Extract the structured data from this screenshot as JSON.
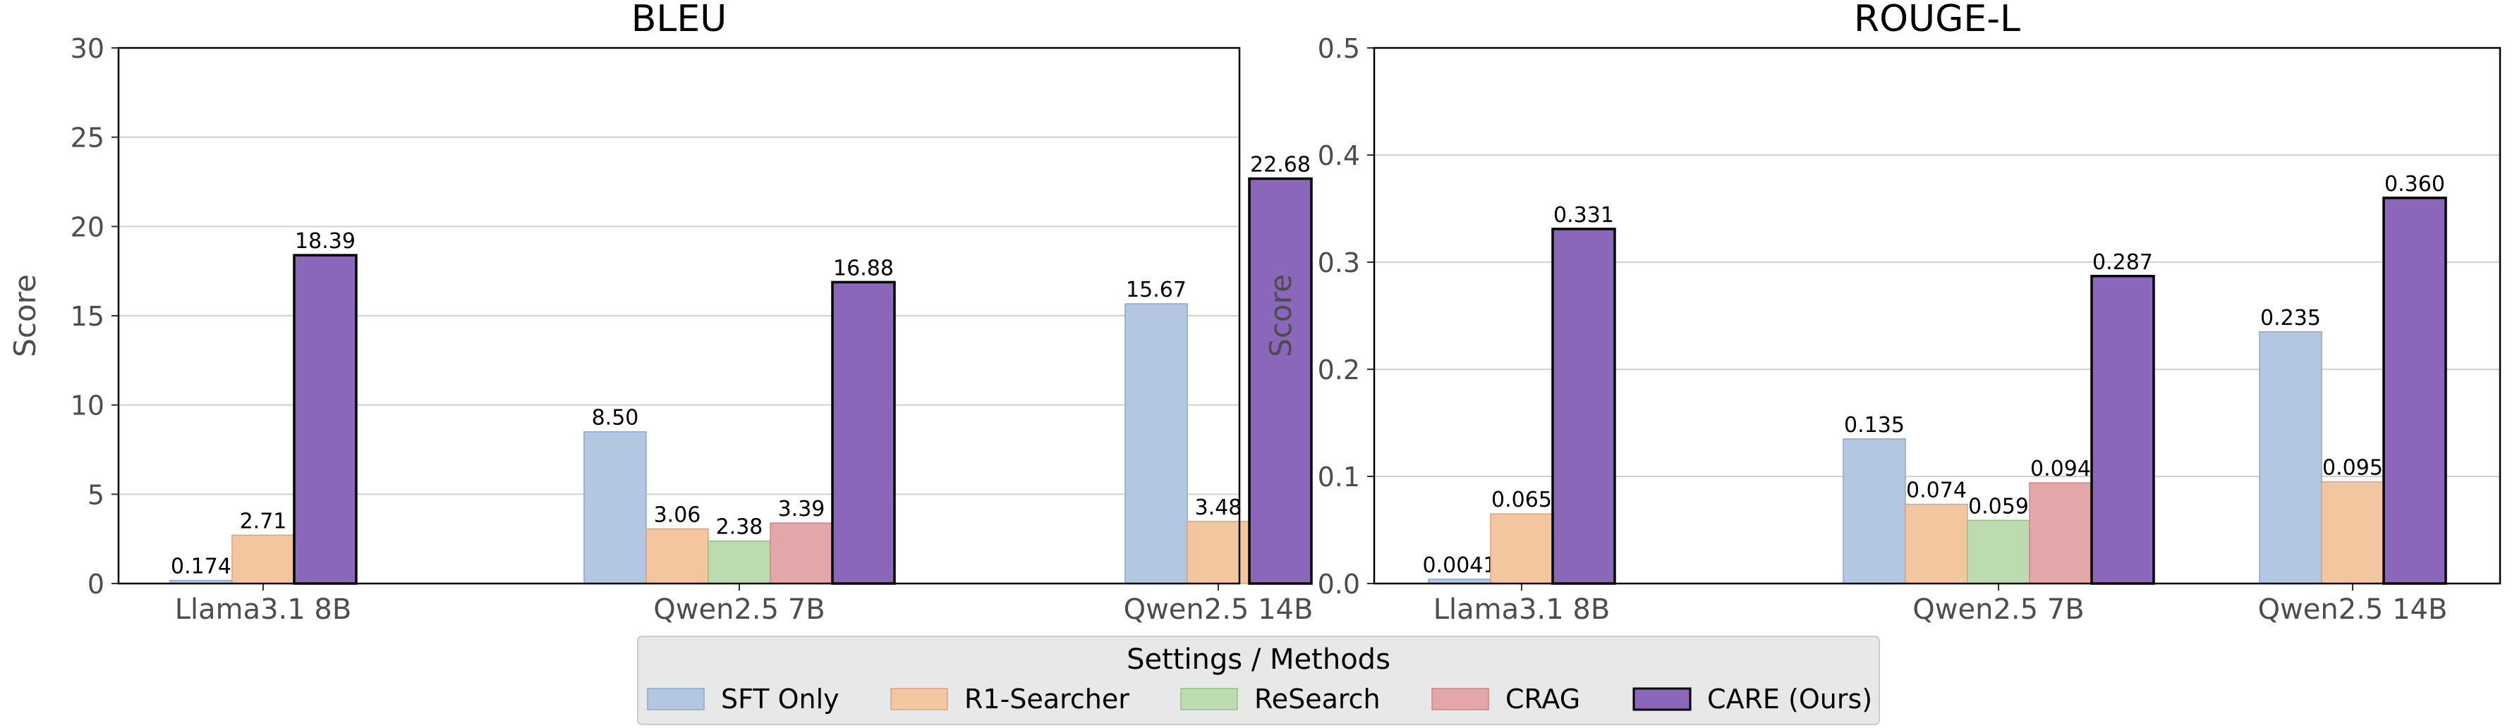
{
  "legend": {
    "title": "Settings / Methods"
  },
  "series_colors": {
    "SFT Only": "#b3c7e2",
    "R1-Searcher": "#f3c6a0",
    "ReSearch": "#bcdcb0",
    "CRAG": "#e3a7a9",
    "CARE (Ours)": "#8a67ba"
  },
  "chart_data": [
    {
      "type": "bar",
      "title": "BLEU",
      "xlabel": "",
      "ylabel": "Score",
      "ylim": [
        0,
        30
      ],
      "yticks": [
        "0",
        "5",
        "10",
        "15",
        "20",
        "25",
        "30"
      ],
      "grid": "horizontal",
      "legend_placement": "bottom-center",
      "categories": [
        "Llama3.1 8B",
        "Qwen2.5 7B",
        "Qwen2.5 14B"
      ],
      "series": [
        {
          "name": "SFT Only",
          "values": [
            0.174,
            8.5,
            15.67
          ],
          "labels": [
            "0.174",
            "8.50",
            "15.67"
          ]
        },
        {
          "name": "R1-Searcher",
          "values": [
            2.71,
            3.06,
            3.48
          ],
          "labels": [
            "2.71",
            "3.06",
            "3.48"
          ]
        },
        {
          "name": "ReSearch",
          "values": [
            null,
            2.38,
            null
          ],
          "labels": [
            null,
            "2.38",
            null
          ]
        },
        {
          "name": "CRAG",
          "values": [
            null,
            3.39,
            null
          ],
          "labels": [
            null,
            "3.39",
            null
          ]
        },
        {
          "name": "CARE (Ours)",
          "values": [
            18.39,
            16.88,
            22.68
          ],
          "labels": [
            "18.39",
            "16.88",
            "22.68"
          ]
        }
      ]
    },
    {
      "type": "bar",
      "title": "ROUGE-L",
      "xlabel": "",
      "ylabel": "Score",
      "ylim": [
        0,
        0.5
      ],
      "yticks": [
        "0.0",
        "0.1",
        "0.2",
        "0.3",
        "0.4",
        "0.5"
      ],
      "grid": "horizontal",
      "legend_placement": "bottom-center",
      "categories": [
        "Llama3.1 8B",
        "Qwen2.5 7B",
        "Qwen2.5 14B"
      ],
      "series": [
        {
          "name": "SFT Only",
          "values": [
            0.0041,
            0.135,
            0.235
          ],
          "labels": [
            "0.0041",
            "0.135",
            "0.235"
          ]
        },
        {
          "name": "R1-Searcher",
          "values": [
            0.065,
            0.074,
            0.095
          ],
          "labels": [
            "0.065",
            "0.074",
            "0.095"
          ]
        },
        {
          "name": "ReSearch",
          "values": [
            null,
            0.059,
            null
          ],
          "labels": [
            null,
            "0.059",
            null
          ]
        },
        {
          "name": "CRAG",
          "values": [
            null,
            0.094,
            null
          ],
          "labels": [
            null,
            "0.094",
            null
          ]
        },
        {
          "name": "CARE (Ours)",
          "values": [
            0.331,
            0.287,
            0.36
          ],
          "labels": [
            "0.331",
            "0.287",
            "0.360"
          ]
        }
      ]
    }
  ]
}
